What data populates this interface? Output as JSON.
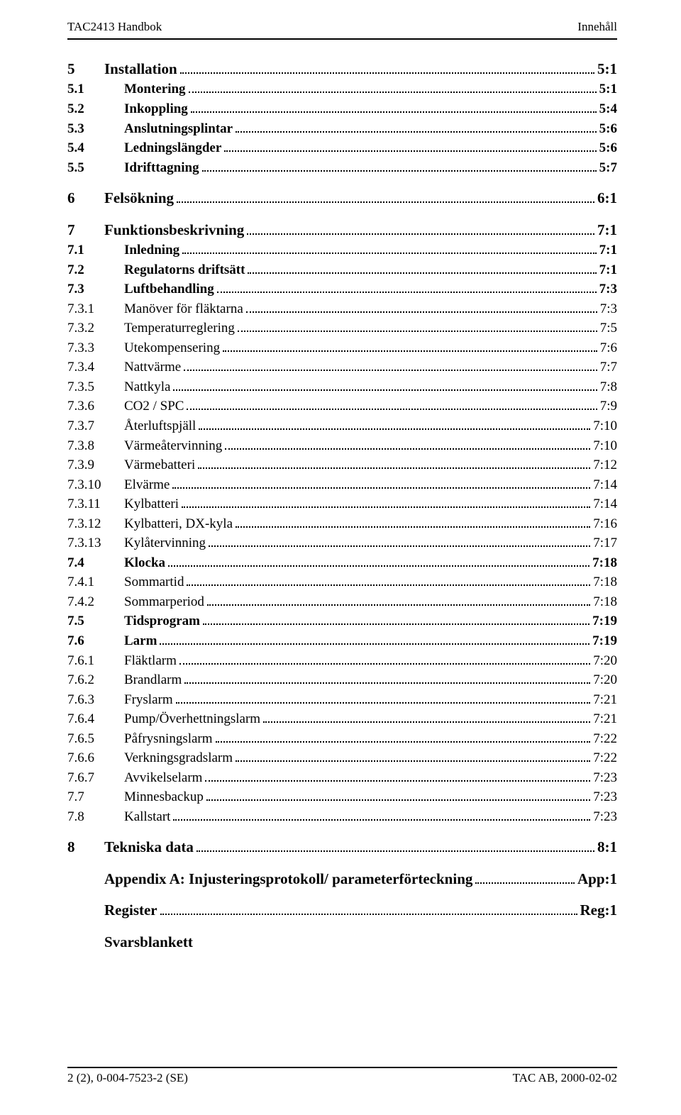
{
  "header": {
    "left": "TAC2413 Handbok",
    "right": "Innehåll"
  },
  "footer": {
    "left": "2 (2), 0-004-7523-2 (SE)",
    "right": "TAC AB, 2000-02-02"
  },
  "toc": [
    {
      "level": 0,
      "num": "5",
      "title": "Installation",
      "page": "5:1",
      "gap": false
    },
    {
      "level": 1,
      "num": "5.1",
      "title": "Montering",
      "page": "5:1",
      "gap": false
    },
    {
      "level": 1,
      "num": "5.2",
      "title": "Inkoppling",
      "page": "5:4",
      "gap": false
    },
    {
      "level": 1,
      "num": "5.3",
      "title": "Anslutningsplintar",
      "page": "5:6",
      "gap": false
    },
    {
      "level": 1,
      "num": "5.4",
      "title": "Ledningslängder",
      "page": "5:6",
      "gap": false
    },
    {
      "level": 1,
      "num": "5.5",
      "title": "Idrifttagning",
      "page": "5:7",
      "gap": false
    },
    {
      "level": 0,
      "num": "6",
      "title": "Felsökning",
      "page": "6:1",
      "gap": true
    },
    {
      "level": 0,
      "num": "7",
      "title": "Funktionsbeskrivning",
      "page": "7:1",
      "gap": true
    },
    {
      "level": 1,
      "num": "7.1",
      "title": "Inledning",
      "page": "7:1",
      "gap": false
    },
    {
      "level": 1,
      "num": "7.2",
      "title": "Regulatorns driftsätt",
      "page": "7:1",
      "gap": false
    },
    {
      "level": 1,
      "num": "7.3",
      "title": "Luftbehandling",
      "page": "7:3",
      "gap": false
    },
    {
      "level": 2,
      "num": "7.3.1",
      "title": "Manöver för fläktarna",
      "page": "7:3",
      "gap": false
    },
    {
      "level": 2,
      "num": "7.3.2",
      "title": "Temperaturreglering",
      "page": "7:5",
      "gap": false
    },
    {
      "level": 2,
      "num": "7.3.3",
      "title": "Utekompensering",
      "page": "7:6",
      "gap": false
    },
    {
      "level": 2,
      "num": "7.3.4",
      "title": "Nattvärme",
      "page": "7:7",
      "gap": false
    },
    {
      "level": 2,
      "num": "7.3.5",
      "title": "Nattkyla",
      "page": "7:8",
      "gap": false
    },
    {
      "level": 2,
      "num": "7.3.6",
      "title": "CO2 / SPC",
      "page": "7:9",
      "gap": false
    },
    {
      "level": 2,
      "num": "7.3.7",
      "title": "Återluftspjäll",
      "page": "7:10",
      "gap": false
    },
    {
      "level": 2,
      "num": "7.3.8",
      "title": "Värmeåtervinning",
      "page": "7:10",
      "gap": false
    },
    {
      "level": 2,
      "num": "7.3.9",
      "title": "Värmebatteri",
      "page": "7:12",
      "gap": false
    },
    {
      "level": 2,
      "num": "7.3.10",
      "title": "Elvärme",
      "page": "7:14",
      "gap": false
    },
    {
      "level": 2,
      "num": "7.3.11",
      "title": "Kylbatteri",
      "page": "7:14",
      "gap": false
    },
    {
      "level": 2,
      "num": "7.3.12",
      "title": "Kylbatteri, DX-kyla",
      "page": "7:16",
      "gap": false
    },
    {
      "level": 2,
      "num": "7.3.13",
      "title": "Kylåtervinning",
      "page": "7:17",
      "gap": false
    },
    {
      "level": 1,
      "num": "7.4",
      "title": "Klocka",
      "page": "7:18",
      "gap": false
    },
    {
      "level": 2,
      "num": "7.4.1",
      "title": "Sommartid",
      "page": "7:18",
      "gap": false
    },
    {
      "level": 2,
      "num": "7.4.2",
      "title": "Sommarperiod",
      "page": "7:18",
      "gap": false
    },
    {
      "level": 1,
      "num": "7.5",
      "title": "Tidsprogram",
      "page": "7:19",
      "gap": false
    },
    {
      "level": 1,
      "num": "7.6",
      "title": "Larm",
      "page": "7:19",
      "gap": false
    },
    {
      "level": 2,
      "num": "7.6.1",
      "title": "Fläktlarm",
      "page": "7:20",
      "gap": false
    },
    {
      "level": 2,
      "num": "7.6.2",
      "title": "Brandlarm",
      "page": "7:20",
      "gap": false
    },
    {
      "level": 2,
      "num": "7.6.3",
      "title": "Fryslarm",
      "page": "7:21",
      "gap": false
    },
    {
      "level": 2,
      "num": "7.6.4",
      "title": "Pump/Överhettningslarm",
      "page": "7:21",
      "gap": false
    },
    {
      "level": 2,
      "num": "7.6.5",
      "title": "Påfrysningslarm",
      "page": "7:22",
      "gap": false
    },
    {
      "level": 2,
      "num": "7.6.6",
      "title": "Verkningsgradslarm",
      "page": "7:22",
      "gap": false
    },
    {
      "level": 2,
      "num": "7.6.7",
      "title": "Avvikelselarm",
      "page": "7:23",
      "gap": false
    },
    {
      "level": 2,
      "num": "7.7",
      "title": "Minnesbackup",
      "page": "7:23",
      "gap": false
    },
    {
      "level": 2,
      "num": "7.8",
      "title": "Kallstart",
      "page": "7:23",
      "gap": false
    },
    {
      "level": 0,
      "num": "8",
      "title": "Tekniska data",
      "page": "8:1",
      "gap": true
    },
    {
      "level": 0,
      "num": "",
      "title": "Appendix A: Injusteringsprotokoll/ parameterförteckning",
      "page": "App:1",
      "gap": true
    },
    {
      "level": 0,
      "num": "",
      "title": "Register",
      "page": "Reg:1",
      "gap": true
    },
    {
      "level": 0,
      "num": "",
      "title": "Svarsblankett",
      "page": "",
      "gap": true,
      "noleader": true
    }
  ]
}
